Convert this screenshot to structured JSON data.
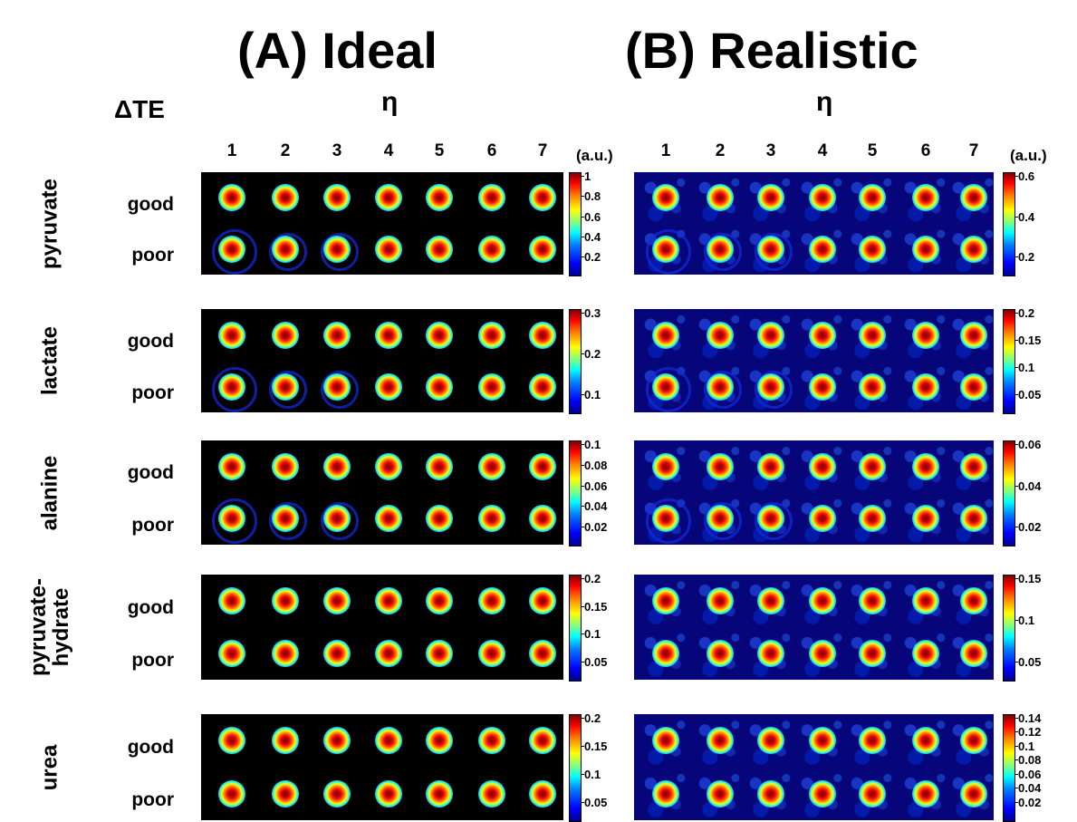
{
  "titles": {
    "a": "(A) Ideal",
    "b": "(B) Realistic"
  },
  "delta_te_label": "ΔTE",
  "eta_label": "η",
  "unit_label": "(a.u.)",
  "eta_values": [
    "1",
    "2",
    "3",
    "4",
    "5",
    "6",
    "7"
  ],
  "row_labels": {
    "good": "good",
    "poor": "poor"
  },
  "metabolites": [
    {
      "name": "pyruvate",
      "ideal_ticks": [
        "1",
        "0.8",
        "0.6",
        "0.4",
        "0.2"
      ],
      "realistic_ticks": [
        "0.6",
        "0.4",
        "0.2"
      ]
    },
    {
      "name": "lactate",
      "ideal_ticks": [
        "0.3",
        "0.2",
        "0.1"
      ],
      "realistic_ticks": [
        "0.2",
        "0.15",
        "0.1",
        "0.05"
      ]
    },
    {
      "name": "alanine",
      "ideal_ticks": [
        "0.1",
        "0.08",
        "0.06",
        "0.04",
        "0.02"
      ],
      "realistic_ticks": [
        "0.06",
        "0.04",
        "0.02"
      ]
    },
    {
      "name": "pyruvate-\nhydrate",
      "ideal_ticks": [
        "0.2",
        "0.15",
        "0.1",
        "0.05"
      ],
      "realistic_ticks": [
        "0.15",
        "0.1",
        "0.05"
      ]
    },
    {
      "name": "urea",
      "ideal_ticks": [
        "0.2",
        "0.15",
        "0.1",
        "0.05"
      ],
      "realistic_ticks": [
        "0.14",
        "0.12",
        "0.1",
        "0.08",
        "0.06",
        "0.04",
        "0.02"
      ]
    }
  ],
  "colormap": "jet"
}
